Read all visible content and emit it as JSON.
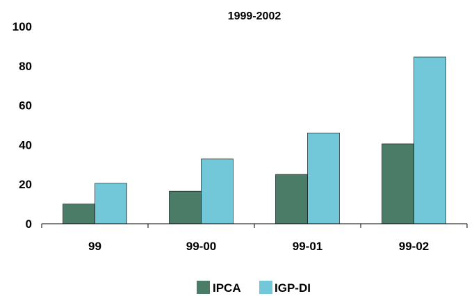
{
  "chart_data": {
    "type": "bar",
    "title": "1999-2002",
    "categories": [
      "99",
      "99-00",
      "99-01",
      "99-02"
    ],
    "series": [
      {
        "name": "IPCA",
        "color": "#4a7c68",
        "values": [
          10,
          16.5,
          25,
          40.5
        ]
      },
      {
        "name": "IGP-DI",
        "color": "#72c8d8",
        "values": [
          20.5,
          32.8,
          46,
          84.5
        ]
      }
    ],
    "ylim": [
      0,
      100
    ],
    "yticks": [
      "0",
      "20",
      "40",
      "60",
      "80",
      "100"
    ],
    "grid": false,
    "legend_position": "bottom"
  }
}
